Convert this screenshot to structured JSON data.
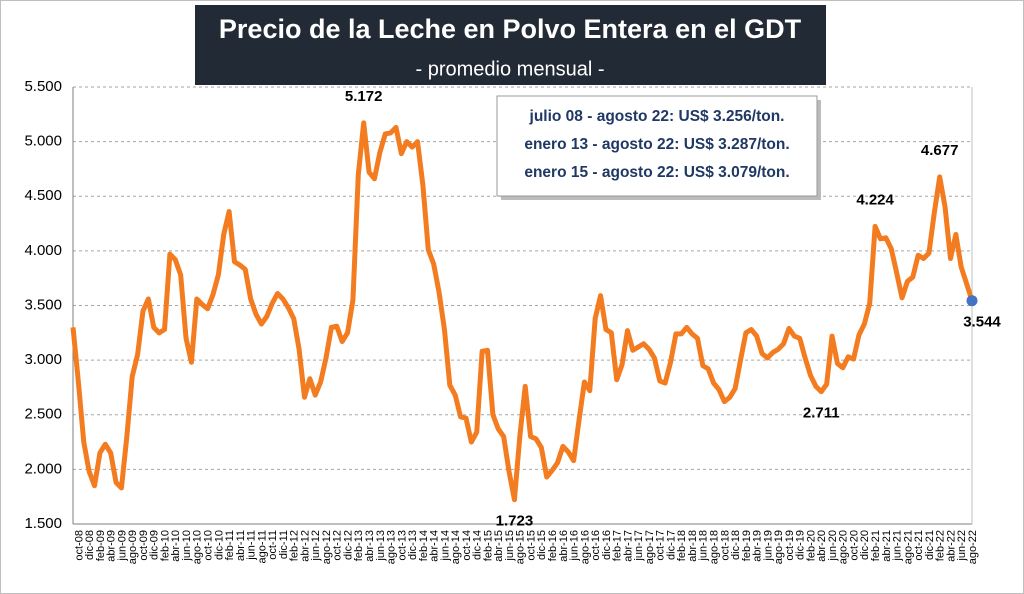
{
  "chart_data": {
    "type": "line",
    "title": "Precio de la Leche en Polvo Entera en el GDT",
    "subtitle": "- promedio mensual -",
    "annotations": [
      "julio 08 - agosto 22: US$ 3.256/ton.",
      "enero 13 - agosto 22: US$ 3.287/ton.",
      "enero 15 - agosto 22: US$ 3.079/ton."
    ],
    "categories": [
      null,
      "oct-08",
      null,
      "dic-08",
      null,
      "feb-09",
      null,
      "abr-09",
      null,
      "jun-09",
      null,
      "ago-09",
      null,
      "oct-09",
      null,
      "dic-09",
      null,
      "feb-10",
      null,
      "abr-10",
      null,
      "jun-10",
      null,
      "ago-10",
      null,
      "oct-10",
      null,
      "dic-10",
      null,
      "feb-11",
      null,
      "abr-11",
      null,
      "jun-11",
      null,
      "ago-11",
      null,
      "oct-11",
      null,
      "dic-11",
      null,
      "feb-12",
      null,
      "abr-12",
      null,
      "jun-12",
      null,
      "ago-12",
      null,
      "oct-12",
      null,
      "dic-12",
      null,
      "feb-13",
      null,
      "abr-13",
      null,
      "jun-13",
      null,
      "ago-13",
      null,
      "oct-13",
      null,
      "dic-13",
      null,
      "feb-14",
      null,
      "abr-14",
      null,
      "jun-14",
      null,
      "ago-14",
      null,
      "oct-14",
      null,
      "dic-14",
      null,
      "feb-15",
      null,
      "abr-15",
      null,
      "jun-15",
      null,
      "ago-15",
      null,
      "oct-15",
      null,
      "dic-15",
      null,
      "feb-16",
      null,
      "abr-16",
      null,
      "jun-16",
      null,
      "ago-16",
      null,
      "oct-16",
      null,
      "dic-16",
      null,
      "feb-17",
      null,
      "abr-17",
      null,
      "jun-17",
      null,
      "ago-17",
      null,
      "oct-17",
      null,
      "dic-17",
      null,
      "feb-18",
      null,
      "abr-18",
      null,
      "jun-18",
      null,
      "ago-18",
      null,
      "oct-18",
      null,
      "dic-18",
      null,
      "feb-19",
      null,
      "abr-19",
      null,
      "jun-19",
      null,
      "ago-19",
      null,
      "oct-19",
      null,
      "dic-19",
      null,
      "feb-20",
      null,
      "abr-20",
      null,
      "jun-20",
      null,
      "ago-20",
      null,
      "oct-20",
      null,
      "dic-20",
      null,
      "feb-21",
      null,
      "abr-21",
      null,
      "jun-21",
      null,
      "ago-21",
      null,
      "oct-21",
      null,
      "dic-21",
      null,
      "feb-22",
      null,
      "abr-22",
      null,
      "jun-22",
      null,
      "ago-22"
    ],
    "series": [
      {
        "name": "Precio",
        "color": "#f47c20",
        "end_marker_color": "#4472c4",
        "values": [
          3300,
          2800,
          2250,
          1980,
          1850,
          2150,
          2230,
          2150,
          1880,
          1830,
          2300,
          2850,
          3050,
          3450,
          3560,
          3300,
          3250,
          3280,
          3970,
          3920,
          3780,
          3200,
          2980,
          3560,
          3510,
          3470,
          3600,
          3780,
          4150,
          4360,
          3900,
          3870,
          3830,
          3560,
          3420,
          3330,
          3400,
          3520,
          3610,
          3560,
          3480,
          3380,
          3100,
          2660,
          2830,
          2680,
          2800,
          3020,
          3300,
          3310,
          3170,
          3250,
          3550,
          4700,
          5172,
          4720,
          4660,
          4900,
          5070,
          5080,
          5130,
          4890,
          5000,
          4950,
          5000,
          4600,
          4010,
          3880,
          3620,
          3280,
          2770,
          2680,
          2480,
          2470,
          2250,
          2340,
          3080,
          3090,
          2500,
          2370,
          2300,
          1980,
          1723,
          2300,
          2760,
          2300,
          2280,
          2200,
          1930,
          1990,
          2060,
          2210,
          2160,
          2080,
          2450,
          2800,
          2720,
          3380,
          3590,
          3280,
          3250,
          2820,
          2960,
          3270,
          3090,
          3120,
          3150,
          3100,
          3020,
          2810,
          2790,
          2980,
          3240,
          3240,
          3300,
          3240,
          3200,
          2950,
          2920,
          2790,
          2730,
          2620,
          2660,
          2740,
          3000,
          3250,
          3280,
          3220,
          3060,
          3020,
          3070,
          3100,
          3150,
          3290,
          3220,
          3200,
          3020,
          2860,
          2760,
          2711,
          2780,
          3220,
          2970,
          2930,
          3030,
          3010,
          3230,
          3330,
          3520,
          4224,
          4110,
          4120,
          4020,
          3800,
          3570,
          3720,
          3760,
          3960,
          3930,
          3980,
          4350,
          4677,
          4400,
          3930,
          4150,
          3850,
          3700,
          3544
        ],
        "value_labels": [
          null,
          null,
          null,
          null,
          null,
          null,
          null,
          null,
          null,
          null,
          null,
          null,
          null,
          null,
          null,
          null,
          null,
          null,
          null,
          null,
          null,
          null,
          null,
          null,
          null,
          null,
          null,
          null,
          null,
          null,
          null,
          null,
          null,
          null,
          null,
          null,
          null,
          null,
          null,
          null,
          null,
          null,
          null,
          null,
          null,
          null,
          null,
          null,
          null,
          null,
          null,
          null,
          null,
          null,
          "5.172",
          null,
          null,
          null,
          null,
          null,
          null,
          null,
          null,
          null,
          null,
          null,
          null,
          null,
          null,
          null,
          null,
          null,
          null,
          null,
          null,
          null,
          null,
          null,
          null,
          null,
          null,
          null,
          "1.723",
          null,
          null,
          null,
          null,
          null,
          null,
          null,
          null,
          null,
          null,
          null,
          null,
          null,
          null,
          null,
          null,
          null,
          null,
          null,
          null,
          null,
          null,
          null,
          null,
          null,
          null,
          null,
          null,
          null,
          null,
          null,
          null,
          null,
          null,
          null,
          null,
          null,
          null,
          null,
          null,
          null,
          null,
          null,
          null,
          null,
          null,
          null,
          null,
          null,
          null,
          null,
          null,
          null,
          null,
          null,
          null,
          "2.711",
          null,
          null,
          null,
          null,
          null,
          null,
          null,
          null,
          null,
          "4.224",
          null,
          null,
          null,
          null,
          null,
          null,
          null,
          null,
          null,
          null,
          null,
          "4.677",
          null,
          null,
          null,
          null,
          null,
          "3.544"
        ]
      }
    ],
    "ylim": [
      1500,
      5500
    ],
    "yticks": [
      {
        "value": 1500,
        "label": "1.500"
      },
      {
        "value": 2000,
        "label": "2.000"
      },
      {
        "value": 2500,
        "label": "2.500"
      },
      {
        "value": 3000,
        "label": "3.000"
      },
      {
        "value": 3500,
        "label": "3.500"
      },
      {
        "value": 4000,
        "label": "4.000"
      },
      {
        "value": 4500,
        "label": "4.500"
      },
      {
        "value": 5000,
        "label": "5.000"
      },
      {
        "value": 5500,
        "label": "5.500"
      }
    ],
    "grid": true
  }
}
